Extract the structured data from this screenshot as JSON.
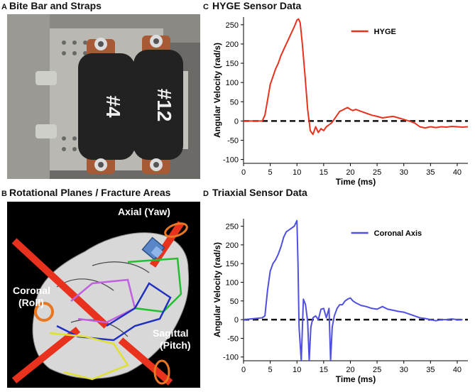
{
  "panels": {
    "a": {
      "letter": "A",
      "title": "Bite Bar and Straps",
      "strap_labels": [
        "#4",
        "#12"
      ]
    },
    "b": {
      "letter": "B",
      "title": "Rotational Planes / Fracture Areas",
      "labels": {
        "axial": "Axial (Yaw)",
        "coronal_1": "Coronal",
        "coronal_2": "(Roll)",
        "sagittal_1": "Sagittal",
        "sagittal_2": "(Pitch)"
      }
    },
    "c": {
      "letter": "C",
      "title": "HYGE Sensor Data"
    },
    "d": {
      "letter": "D",
      "title": "Triaxial Sensor Data"
    }
  },
  "colors": {
    "hyge": "#e8321e",
    "coronal": "#5050e0",
    "reference": "#111111",
    "plane_red": "#e8321e"
  },
  "chart_data": [
    {
      "type": "line",
      "title": "HYGE Sensor Data",
      "xlabel": "Time (ms)",
      "ylabel": "Angular Velocity (rad/s)",
      "xlim": [
        0,
        42
      ],
      "ylim": [
        -110,
        270
      ],
      "xticks": [
        0,
        5,
        10,
        15,
        20,
        25,
        30,
        35,
        40
      ],
      "yticks": [
        -100,
        -50,
        0,
        50,
        100,
        150,
        200,
        250
      ],
      "legend": "top-right",
      "reference_line": {
        "y": 0,
        "style": "dashed"
      },
      "series": [
        {
          "name": "HYGE",
          "color": "#e8321e",
          "x": [
            0,
            3.5,
            4,
            4.5,
            5,
            5.5,
            6,
            6.5,
            7,
            7.5,
            8,
            8.5,
            9,
            9.5,
            10,
            10.3,
            10.6,
            11,
            11.5,
            12,
            12.5,
            13,
            13.5,
            14,
            14.5,
            15,
            15.5,
            16,
            16.5,
            17,
            17.5,
            18,
            18.5,
            19,
            19.5,
            20,
            20.5,
            21,
            22,
            23,
            24,
            25,
            26,
            27,
            28,
            29,
            30,
            31,
            32,
            33,
            34,
            35,
            36,
            37,
            38,
            39,
            40,
            41,
            42
          ],
          "y": [
            0,
            0,
            15,
            55,
            95,
            115,
            135,
            150,
            170,
            185,
            200,
            215,
            230,
            245,
            262,
            265,
            255,
            200,
            120,
            30,
            -25,
            -35,
            -15,
            -30,
            -20,
            -25,
            -15,
            -10,
            -5,
            5,
            15,
            25,
            28,
            32,
            35,
            30,
            27,
            30,
            25,
            20,
            15,
            12,
            8,
            10,
            12,
            8,
            4,
            0,
            -5,
            -15,
            -18,
            -15,
            -17,
            -15,
            -16,
            -14,
            -15,
            -16,
            -15
          ]
        }
      ]
    },
    {
      "type": "line",
      "title": "Triaxial Sensor Data",
      "xlabel": "Time (ms)",
      "ylabel": "Angular Velocity (rad/s)",
      "xlim": [
        0,
        42
      ],
      "ylim": [
        -110,
        270
      ],
      "xticks": [
        0,
        5,
        10,
        15,
        20,
        25,
        30,
        35,
        40
      ],
      "yticks": [
        -100,
        -50,
        0,
        50,
        100,
        150,
        200,
        250
      ],
      "legend": "top-right",
      "reference_line": {
        "y": 0,
        "style": "dashed"
      },
      "series": [
        {
          "name": "Coronal Axis",
          "color": "#5050e0",
          "x": [
            0,
            3.5,
            4,
            4.5,
            5,
            5.5,
            6,
            6.5,
            7,
            7.5,
            8,
            8.5,
            9,
            9.5,
            10,
            10.2,
            10.4,
            10.8,
            11.2,
            11.6,
            12,
            12.3,
            12.6,
            13,
            13.5,
            14,
            14.5,
            15,
            15.5,
            16,
            16.3,
            16.6,
            17,
            17.5,
            18,
            18.5,
            19,
            19.5,
            20,
            20.5,
            21,
            22,
            23,
            24,
            25,
            26,
            27,
            28,
            29,
            30,
            31,
            32,
            33,
            34,
            35,
            36,
            37,
            38,
            39,
            40,
            41
          ],
          "y": [
            0,
            5,
            10,
            80,
            130,
            150,
            160,
            175,
            195,
            220,
            235,
            240,
            245,
            250,
            265,
            150,
            -20,
            -110,
            55,
            40,
            -5,
            -110,
            -20,
            5,
            10,
            0,
            28,
            30,
            5,
            30,
            -110,
            -20,
            10,
            30,
            40,
            40,
            50,
            55,
            58,
            50,
            45,
            38,
            35,
            30,
            28,
            35,
            28,
            25,
            22,
            20,
            15,
            10,
            5,
            3,
            0,
            -3,
            0,
            0,
            2,
            0,
            0
          ]
        }
      ]
    }
  ]
}
